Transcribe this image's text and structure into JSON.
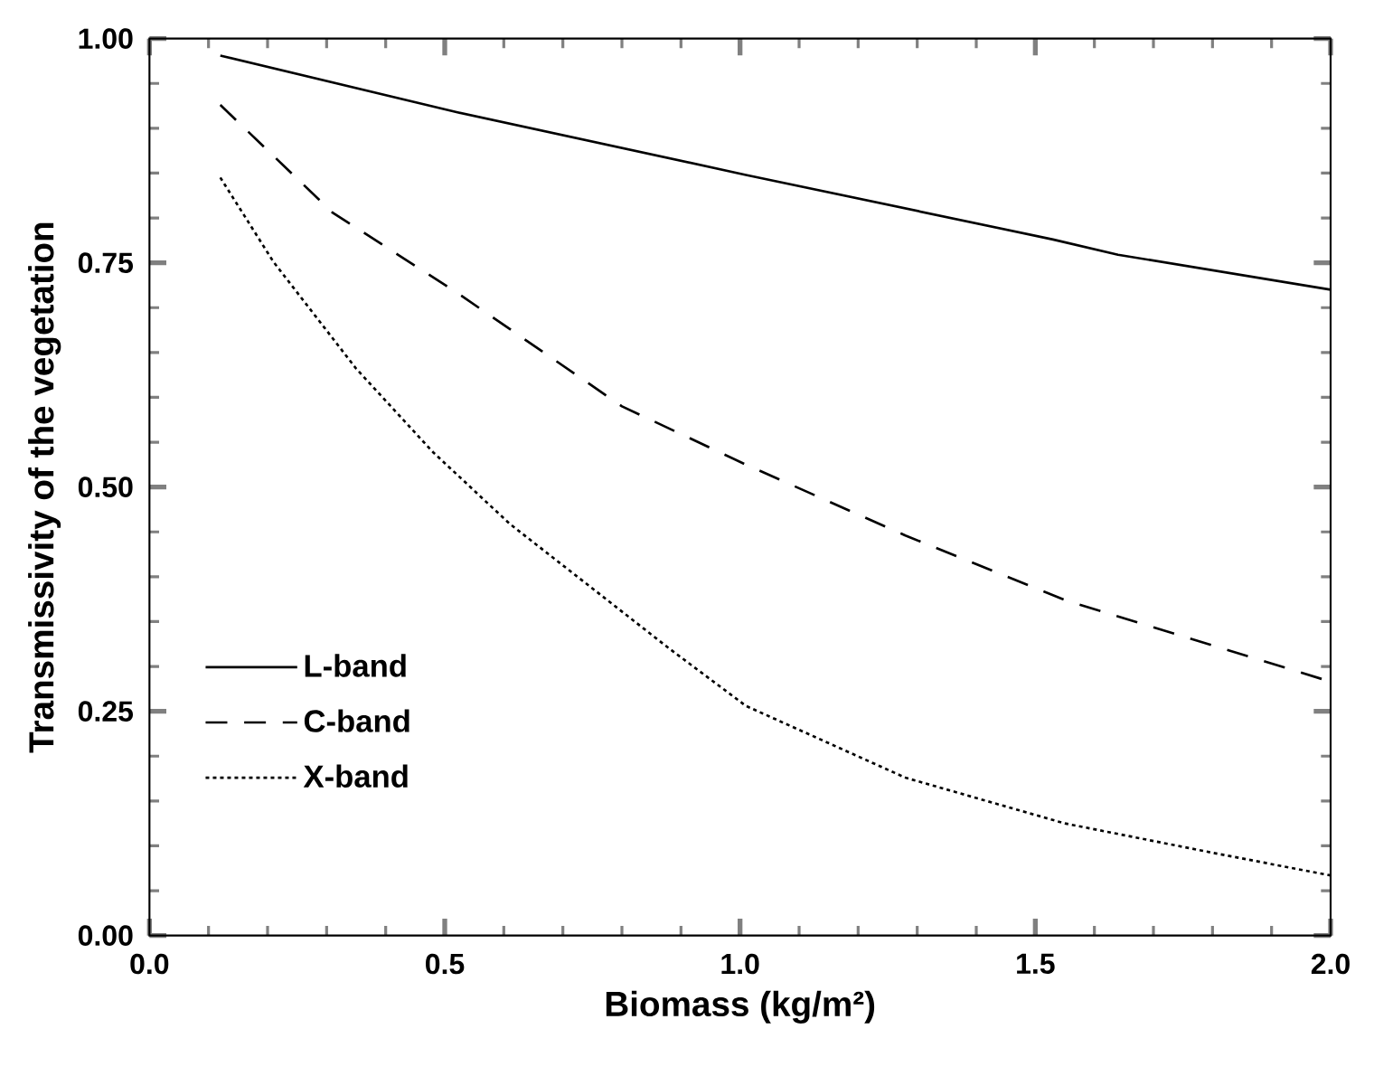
{
  "chart_data": {
    "type": "line",
    "xlabel": "Biomass (kg/m²)",
    "ylabel": "Transmissivity of the vegetation",
    "xlim": [
      0,
      2
    ],
    "ylim": [
      0,
      1
    ],
    "xticks": [
      {
        "value": 0,
        "label": "0.0"
      },
      {
        "value": 0.5,
        "label": "0.5"
      },
      {
        "value": 1,
        "label": "1.0"
      },
      {
        "value": 1.5,
        "label": "1.5"
      },
      {
        "value": 2,
        "label": "2.0"
      }
    ],
    "yticks": [
      {
        "value": 0,
        "label": "0.00"
      },
      {
        "value": 0.25,
        "label": "0.25"
      },
      {
        "value": 0.5,
        "label": "0.50"
      },
      {
        "value": 0.75,
        "label": "0.75"
      },
      {
        "value": 1,
        "label": "1.00"
      }
    ],
    "grid": false,
    "legend": "bottom left",
    "marker": "none",
    "series": [
      {
        "name": "L-band",
        "color": "#000000",
        "line_style": "solid",
        "x": [
          0.12,
          0.52,
          1.01,
          1.53,
          1.64,
          2.0
        ],
        "values": [
          0.981,
          0.918,
          0.848,
          0.776,
          0.759,
          0.72
        ]
      },
      {
        "name": "C-band",
        "color": "#000000",
        "line_style": "dashed",
        "x": [
          0.12,
          0.31,
          0.52,
          0.8,
          1.01,
          1.28,
          1.55,
          2.0
        ],
        "values": [
          0.926,
          0.806,
          0.717,
          0.59,
          0.525,
          0.446,
          0.374,
          0.283
        ]
      },
      {
        "name": "X-band",
        "color": "#000000",
        "line_style": "dotted",
        "x": [
          0.12,
          0.21,
          0.35,
          0.48,
          0.61,
          0.75,
          0.88,
          1.01,
          1.28,
          1.55,
          1.81,
          2.0
        ],
        "values": [
          0.845,
          0.751,
          0.632,
          0.539,
          0.459,
          0.387,
          0.32,
          0.256,
          0.176,
          0.125,
          0.091,
          0.067
        ]
      }
    ]
  }
}
